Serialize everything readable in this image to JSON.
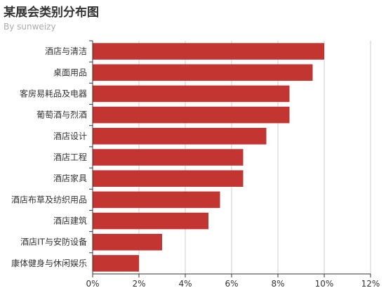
{
  "chart_data": {
    "type": "bar",
    "orientation": "horizontal",
    "title": "某展会类别分布图",
    "subtitle": "By sunweizy",
    "categories": [
      "酒店与清洁",
      "桌面用品",
      "客房易耗品及电器",
      "葡萄酒与烈酒",
      "酒店设计",
      "酒店工程",
      "酒店家具",
      "酒店布草及纺织用品",
      "酒店建筑",
      "酒店IT与安防设备",
      "康体健身与休闲娱乐"
    ],
    "values": [
      10,
      9.5,
      8.5,
      8.5,
      7.5,
      6.5,
      6.5,
      5.5,
      5,
      3,
      2
    ],
    "xlim": [
      0,
      12
    ],
    "ticks": [
      "0%",
      "2%",
      "4%",
      "6%",
      "8%",
      "10%",
      "12%"
    ],
    "tick_step": 2,
    "unit": "%",
    "grid": true,
    "bar_color": "#c23531"
  }
}
